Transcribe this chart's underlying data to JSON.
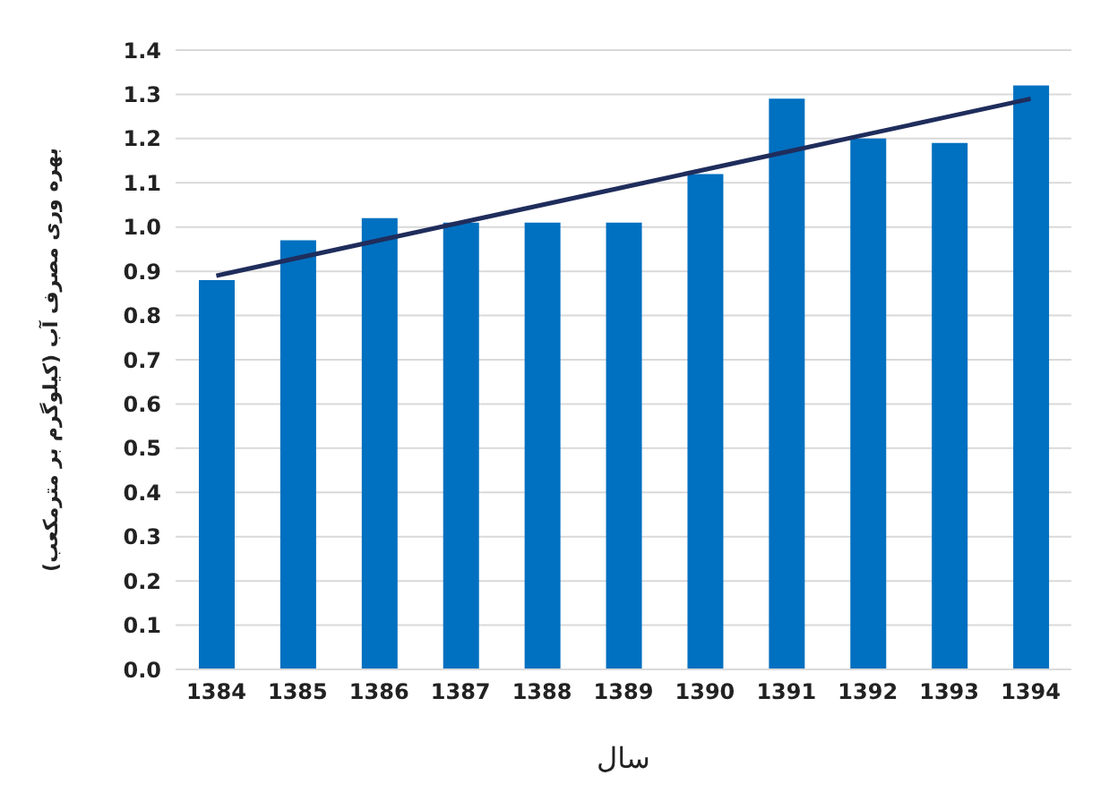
{
  "chart_data": {
    "type": "bar",
    "xlabel": "سال",
    "ylabel": "بهره وری مصرف آب (کیلوگرم بر مترمکعب)",
    "categories": [
      "1384",
      "1385",
      "1386",
      "1387",
      "1388",
      "1389",
      "1390",
      "1391",
      "1392",
      "1393",
      "1394"
    ],
    "series": [
      {
        "color": "#0070c0",
        "values": [
          0.88,
          0.97,
          1.02,
          1.01,
          1.01,
          1.01,
          1.12,
          1.29,
          1.2,
          1.19,
          1.32
        ]
      },
      {
        "type": "line",
        "color": "#1f2d5c",
        "line_style": "solid",
        "marker": "none",
        "values": [
          0.89,
          0.93,
          0.97,
          1.01,
          1.05,
          1.09,
          1.13,
          1.17,
          1.21,
          1.25,
          1.29
        ]
      }
    ],
    "ylim": [
      0,
      1.4
    ],
    "yticks": [
      {
        "value": 0,
        "label": "0.0"
      },
      0.1,
      0.2,
      0.3,
      0.4,
      0.5,
      0.6,
      0.7,
      0.8,
      0.9,
      {
        "value": 1,
        "label": "1.0"
      },
      1.1,
      1.2,
      1.3,
      1.4
    ],
    "grid": "y"
  }
}
